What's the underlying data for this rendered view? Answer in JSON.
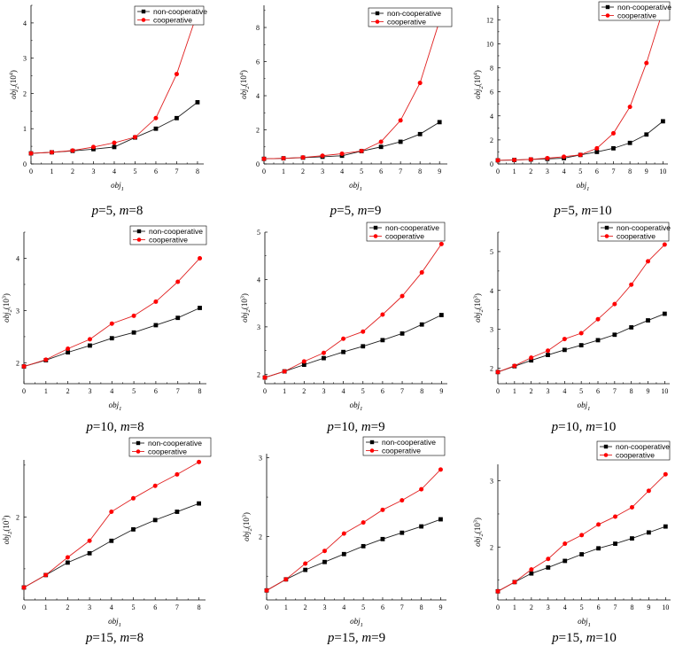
{
  "figure": {
    "colors": {
      "non_cooperative": "#000000",
      "cooperative": "#ff0000",
      "line_non_cooperative": "#1f1f1f",
      "line_cooperative": "#e02020"
    }
  },
  "chart_data": [
    {
      "type": "line",
      "caption": {
        "p_label": "p",
        "p_value": "5",
        "m_label": "m",
        "m_value": "8"
      },
      "xlabel": {
        "base": "obj",
        "sub": "1"
      },
      "ylabel": {
        "base": "obj",
        "sub": "2",
        "unit_base": "(10",
        "unit_exp": "4",
        "unit_close": ")"
      },
      "legend": [
        "non-cooperative",
        "cooperative"
      ],
      "x": [
        0,
        1,
        2,
        3,
        4,
        5,
        6,
        7,
        8
      ],
      "xlim": [
        0,
        8.3
      ],
      "ylim": [
        0,
        4.5
      ],
      "xticks": [
        0,
        1,
        2,
        3,
        4,
        5,
        6,
        7,
        8
      ],
      "yticks": [
        0,
        1,
        2,
        3,
        4
      ],
      "ytick_labels": [
        "0",
        "1",
        "2",
        "3",
        "4"
      ],
      "series": [
        {
          "name": "non-cooperative",
          "values": [
            0.3,
            0.33,
            0.37,
            0.42,
            0.48,
            0.75,
            1.0,
            1.3,
            1.75
          ]
        },
        {
          "name": "cooperative",
          "values": [
            0.3,
            0.33,
            0.38,
            0.48,
            0.6,
            0.76,
            1.3,
            2.55,
            4.3
          ]
        }
      ]
    },
    {
      "type": "line",
      "caption": {
        "p_label": "p",
        "p_value": "5",
        "m_label": "m",
        "m_value": "9"
      },
      "xlabel": {
        "base": "obj",
        "sub": "1"
      },
      "ylabel": {
        "base": "obj",
        "sub": "2",
        "unit_base": "(10",
        "unit_exp": "4",
        "unit_close": ")"
      },
      "legend": [
        "non-cooperative",
        "cooperative"
      ],
      "x": [
        0,
        1,
        2,
        3,
        4,
        5,
        6,
        7,
        8,
        9
      ],
      "xlim": [
        0,
        9.4
      ],
      "ylim": [
        0,
        9.3
      ],
      "xticks": [
        0,
        1,
        2,
        3,
        4,
        5,
        6,
        7,
        8,
        9
      ],
      "yticks": [
        0,
        2,
        4,
        6,
        8
      ],
      "ytick_labels": [
        "0",
        "2",
        "4",
        "6",
        "8"
      ],
      "series": [
        {
          "name": "non-cooperative",
          "values": [
            0.3,
            0.33,
            0.37,
            0.42,
            0.48,
            0.75,
            1.0,
            1.3,
            1.75,
            2.45
          ]
        },
        {
          "name": "cooperative",
          "values": [
            0.3,
            0.33,
            0.38,
            0.48,
            0.6,
            0.76,
            1.3,
            2.55,
            4.75,
            8.4
          ]
        }
      ]
    },
    {
      "type": "line",
      "caption": {
        "p_label": "p",
        "p_value": "5",
        "m_label": "m",
        "m_value": "10"
      },
      "xlabel": {
        "base": "obj",
        "sub": "1"
      },
      "ylabel": {
        "base": "obj",
        "sub": "2",
        "unit_base": "(10",
        "unit_exp": "4",
        "unit_close": ")"
      },
      "legend": [
        "non-cooperative",
        "cooperative"
      ],
      "x": [
        0,
        1,
        2,
        3,
        4,
        5,
        6,
        7,
        8,
        9,
        10
      ],
      "xlim": [
        0,
        10.3
      ],
      "ylim": [
        0,
        13.2
      ],
      "xticks": [
        0,
        1,
        2,
        3,
        4,
        5,
        6,
        7,
        8,
        9,
        10
      ],
      "yticks": [
        0,
        2,
        4,
        6,
        8,
        10,
        12
      ],
      "ytick_labels": [
        "0",
        "2",
        "4",
        "6",
        "8",
        "10",
        "12"
      ],
      "series": [
        {
          "name": "non-cooperative",
          "values": [
            0.3,
            0.33,
            0.37,
            0.42,
            0.48,
            0.75,
            1.0,
            1.3,
            1.75,
            2.45,
            3.55
          ]
        },
        {
          "name": "cooperative",
          "values": [
            0.3,
            0.33,
            0.38,
            0.48,
            0.6,
            0.76,
            1.3,
            2.55,
            4.75,
            8.4,
            12.8
          ]
        }
      ]
    },
    {
      "type": "line",
      "caption": {
        "p_label": "p",
        "p_value": "10",
        "m_label": "m",
        "m_value": "8"
      },
      "xlabel": {
        "base": "obj",
        "sub": "1"
      },
      "ylabel": {
        "base": "obj",
        "sub": "2",
        "unit_base": "(10",
        "unit_exp": "3",
        "unit_close": ")"
      },
      "legend": [
        "non-cooperative",
        "cooperative"
      ],
      "x": [
        0,
        1,
        2,
        3,
        4,
        5,
        6,
        7,
        8
      ],
      "xlim": [
        0,
        8.3
      ],
      "ylim": [
        1.6,
        4.5
      ],
      "xticks": [
        0,
        1,
        2,
        3,
        4,
        5,
        6,
        7,
        8
      ],
      "yticks": [
        2,
        3,
        4
      ],
      "ytick_labels": [
        "2",
        "3",
        "4"
      ],
      "series": [
        {
          "name": "non-cooperative",
          "values": [
            1.93,
            2.05,
            2.2,
            2.33,
            2.47,
            2.58,
            2.72,
            2.86,
            3.05
          ]
        },
        {
          "name": "cooperative",
          "values": [
            1.93,
            2.06,
            2.27,
            2.45,
            2.75,
            2.9,
            3.17,
            3.55,
            4.0
          ]
        }
      ]
    },
    {
      "type": "line",
      "caption": {
        "p_label": "p",
        "p_value": "10",
        "m_label": "m",
        "m_value": "9"
      },
      "xlabel": {
        "base": "obj",
        "sub": "1"
      },
      "ylabel": {
        "base": "obj",
        "sub": "2",
        "unit_base": "(10",
        "unit_exp": "3",
        "unit_close": ")"
      },
      "legend": [
        "non-cooperative",
        "cooperative"
      ],
      "x": [
        0,
        1,
        2,
        3,
        4,
        5,
        6,
        7,
        8,
        9
      ],
      "xlim": [
        0,
        9.3
      ],
      "ylim": [
        1.8,
        5.0
      ],
      "xticks": [
        0,
        1,
        2,
        3,
        4,
        5,
        6,
        7,
        8,
        9
      ],
      "yticks": [
        2,
        3,
        4,
        5
      ],
      "ytick_labels": [
        "2",
        "3",
        "4",
        "5"
      ],
      "series": [
        {
          "name": "non-cooperative",
          "values": [
            1.93,
            2.06,
            2.2,
            2.34,
            2.47,
            2.59,
            2.72,
            2.86,
            3.05,
            3.25
          ]
        },
        {
          "name": "cooperative",
          "values": [
            1.93,
            2.06,
            2.27,
            2.45,
            2.75,
            2.9,
            3.26,
            3.65,
            4.15,
            4.75
          ]
        }
      ]
    },
    {
      "type": "line",
      "caption": {
        "p_label": "p",
        "p_value": "10",
        "m_label": "m",
        "m_value": "10"
      },
      "xlabel": {
        "base": "obj",
        "sub": "1"
      },
      "ylabel": {
        "base": "obj",
        "sub": "2",
        "unit_base": "(10",
        "unit_exp": "3",
        "unit_close": ")"
      },
      "legend": [
        "non-cooperative",
        "cooperative"
      ],
      "x": [
        0,
        1,
        2,
        3,
        4,
        5,
        6,
        7,
        8,
        9,
        10
      ],
      "xlim": [
        0,
        10.3
      ],
      "ylim": [
        1.6,
        5.5
      ],
      "xticks": [
        0,
        1,
        2,
        3,
        4,
        5,
        6,
        7,
        8,
        9,
        10
      ],
      "yticks": [
        2,
        3,
        4,
        5
      ],
      "ytick_labels": [
        "2",
        "3",
        "4",
        "5"
      ],
      "series": [
        {
          "name": "non-cooperative",
          "values": [
            1.9,
            2.05,
            2.2,
            2.34,
            2.47,
            2.59,
            2.72,
            2.86,
            3.05,
            3.23,
            3.4
          ]
        },
        {
          "name": "cooperative",
          "values": [
            1.9,
            2.06,
            2.27,
            2.45,
            2.75,
            2.9,
            3.26,
            3.65,
            4.15,
            4.75,
            5.18
          ]
        }
      ]
    },
    {
      "type": "line",
      "caption": {
        "p_label": "p",
        "p_value": "15",
        "m_label": "m",
        "m_value": "8"
      },
      "xlabel": {
        "base": "obj",
        "sub": "1"
      },
      "ylabel": {
        "base": "obj",
        "sub": "2",
        "unit_base": "(10",
        "unit_exp": "3",
        "unit_close": ")"
      },
      "legend": [
        "non-cooperative",
        "cooperative"
      ],
      "x": [
        0,
        1,
        2,
        3,
        4,
        5,
        6,
        7,
        8
      ],
      "xlim": [
        0,
        8.3
      ],
      "ylim": [
        1.2,
        2.55
      ],
      "xticks": [
        0,
        1,
        2,
        3,
        4,
        5,
        6,
        7,
        8
      ],
      "yticks": [
        2
      ],
      "ytick_labels": [
        "2"
      ],
      "series": [
        {
          "name": "non-cooperative",
          "values": [
            1.32,
            1.44,
            1.56,
            1.65,
            1.77,
            1.88,
            1.97,
            2.05,
            2.13
          ]
        },
        {
          "name": "cooperative",
          "values": [
            1.32,
            1.44,
            1.61,
            1.77,
            2.05,
            2.18,
            2.3,
            2.41,
            2.53
          ]
        }
      ]
    },
    {
      "type": "line",
      "caption": {
        "p_label": "p",
        "p_value": "15",
        "m_label": "m",
        "m_value": "9"
      },
      "xlabel": {
        "base": "obj",
        "sub": "1"
      },
      "ylabel": {
        "base": "obj",
        "sub": "2",
        "unit_base": "(10",
        "unit_exp": "3",
        "unit_close": ")"
      },
      "legend": [
        "non-cooperative",
        "cooperative"
      ],
      "x": [
        0,
        1,
        2,
        3,
        4,
        5,
        6,
        7,
        8,
        9
      ],
      "xlim": [
        0,
        9.3
      ],
      "ylim": [
        1.2,
        3.05
      ],
      "xticks": [
        0,
        1,
        2,
        3,
        4,
        5,
        6,
        7,
        8,
        9
      ],
      "yticks": [
        2,
        3
      ],
      "ytick_labels": [
        "2",
        "3"
      ],
      "series": [
        {
          "name": "non-cooperative",
          "values": [
            1.32,
            1.46,
            1.58,
            1.68,
            1.78,
            1.88,
            1.97,
            2.05,
            2.13,
            2.22
          ]
        },
        {
          "name": "cooperative",
          "values": [
            1.32,
            1.46,
            1.66,
            1.82,
            2.04,
            2.18,
            2.34,
            2.46,
            2.6,
            2.85
          ]
        }
      ]
    },
    {
      "type": "line",
      "caption": {
        "p_label": "p",
        "p_value": "15",
        "m_label": "m",
        "m_value": "10"
      },
      "xlabel": {
        "base": "obj",
        "sub": "1"
      },
      "ylabel": {
        "base": "obj",
        "sub": "2",
        "unit_base": "(10",
        "unit_exp": "3",
        "unit_close": ")"
      },
      "legend": [
        "non-cooperative",
        "cooperative"
      ],
      "x": [
        0,
        1,
        2,
        3,
        4,
        5,
        6,
        7,
        8,
        9,
        10
      ],
      "xlim": [
        0,
        10.3
      ],
      "ylim": [
        1.2,
        3.25
      ],
      "xticks": [
        0,
        1,
        2,
        3,
        4,
        5,
        6,
        7,
        8,
        9,
        10
      ],
      "yticks": [
        2,
        3
      ],
      "ytick_labels": [
        "2",
        "3"
      ],
      "series": [
        {
          "name": "non-cooperative",
          "values": [
            1.33,
            1.47,
            1.6,
            1.69,
            1.79,
            1.89,
            1.98,
            2.05,
            2.13,
            2.22,
            2.31
          ]
        },
        {
          "name": "cooperative",
          "values": [
            1.33,
            1.47,
            1.66,
            1.82,
            2.05,
            2.18,
            2.34,
            2.46,
            2.6,
            2.85,
            3.1
          ]
        }
      ]
    }
  ]
}
